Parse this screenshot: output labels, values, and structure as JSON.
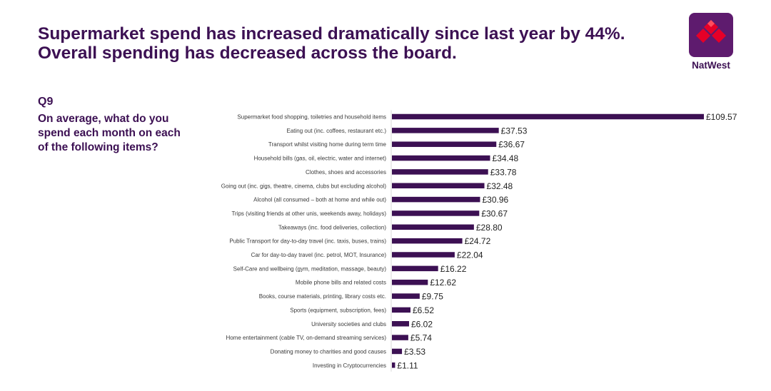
{
  "header": {
    "title_line1": "Supermarket spend has increased dramatically since last year by 44%.",
    "title_line2": "Overall spending has decreased across the board."
  },
  "brand": {
    "name": "NatWest",
    "logo_icon": "natwest-cubes-icon",
    "color": "#5e1b6e",
    "accent": "#e60028"
  },
  "question": {
    "label": "Q9",
    "text": "On average, what do you spend each month on each of the following items?"
  },
  "chart_data": {
    "type": "bar",
    "orientation": "horizontal",
    "bar_color": "#3c1053",
    "xlim": [
      0,
      110
    ],
    "value_prefix": "£",
    "categories": [
      "Supermarket food shopping, toiletries and household items",
      "Eating out (inc. coffees, restaurant etc.)",
      "Transport whilst visiting home during term time",
      "Household bills (gas, oil, electric, water and internet)",
      "Clothes, shoes and accessories",
      "Going out (inc. gigs, theatre, cinema, clubs but excluding alcohol)",
      "Alcohol (all consumed – both at home and while out)",
      "Trips (visiting friends at other unis, weekends away, holidays)",
      "Takeaways (inc. food deliveries, collection)",
      "Public Transport for day-to-day travel (inc. taxis, buses, trains)",
      "Car for day-to-day travel (inc. petrol, MOT, Insurance)",
      "Self-Care and wellbeing (gym, meditation, massage, beauty)",
      "Mobile phone bills and related costs",
      "Books, course materials, printing, library costs etc.",
      "Sports (equipment, subscription, fees)",
      "University societies and clubs",
      "Home entertainment (cable TV, on-demand streaming services)",
      "Donating money to charities and good causes",
      "Investing in Cryptocurrencies"
    ],
    "values": [
      109.57,
      37.53,
      36.67,
      34.48,
      33.78,
      32.48,
      30.96,
      30.67,
      28.8,
      24.72,
      22.04,
      16.22,
      12.62,
      9.75,
      6.52,
      6.02,
      5.74,
      3.53,
      1.11
    ],
    "data_labels": [
      "£109.57",
      "£37.53",
      "£36.67",
      "£34.48",
      "£33.78",
      "£32.48",
      "£30.96",
      "£30.67",
      "£28.80",
      "£24.72",
      "£22.04",
      "£16.22",
      "£12.62",
      "£9.75",
      "£6.52",
      "£6.02",
      "£5.74",
      "£3.53",
      "£1.11"
    ]
  }
}
